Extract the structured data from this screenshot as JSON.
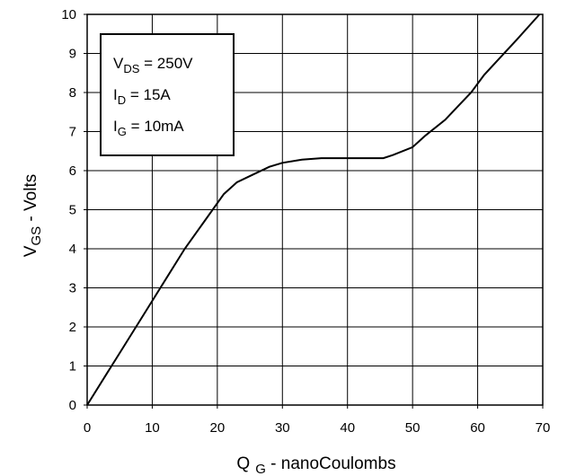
{
  "chart_data": {
    "type": "line",
    "xlabel": {
      "main": "Q",
      "sub": "G",
      "rest": " - nanoCoulombs"
    },
    "ylabel": {
      "main": "V",
      "sub": "GS",
      "rest": " - Volts"
    },
    "xlim": [
      0,
      70
    ],
    "ylim": [
      0,
      10
    ],
    "xticks": [
      "0",
      "10",
      "20",
      "30",
      "40",
      "50",
      "60",
      "70"
    ],
    "yticks": [
      "0",
      "1",
      "2",
      "3",
      "4",
      "5",
      "6",
      "7",
      "8",
      "9",
      "10"
    ],
    "grid": true,
    "annotations": [
      {
        "main": "V",
        "sub": "DS",
        "rest": " = 250V"
      },
      {
        "main": "I",
        "sub": "D",
        "rest": " = 15A"
      },
      {
        "main": "I",
        "sub": "G",
        "rest": " = 10mA"
      }
    ],
    "series": [
      {
        "x": [
          0,
          3,
          6,
          9,
          12,
          15,
          18,
          21,
          23,
          25.5,
          28,
          30,
          33,
          36,
          40,
          45.5,
          47,
          50,
          52,
          55,
          57,
          59,
          61,
          63.5,
          66,
          69.5
        ],
        "y": [
          0,
          0.8,
          1.6,
          2.4,
          3.2,
          4.0,
          4.7,
          5.4,
          5.7,
          5.9,
          6.1,
          6.2,
          6.28,
          6.32,
          6.32,
          6.32,
          6.4,
          6.6,
          6.9,
          7.3,
          7.65,
          8.0,
          8.45,
          8.9,
          9.35,
          10.0
        ]
      }
    ]
  }
}
